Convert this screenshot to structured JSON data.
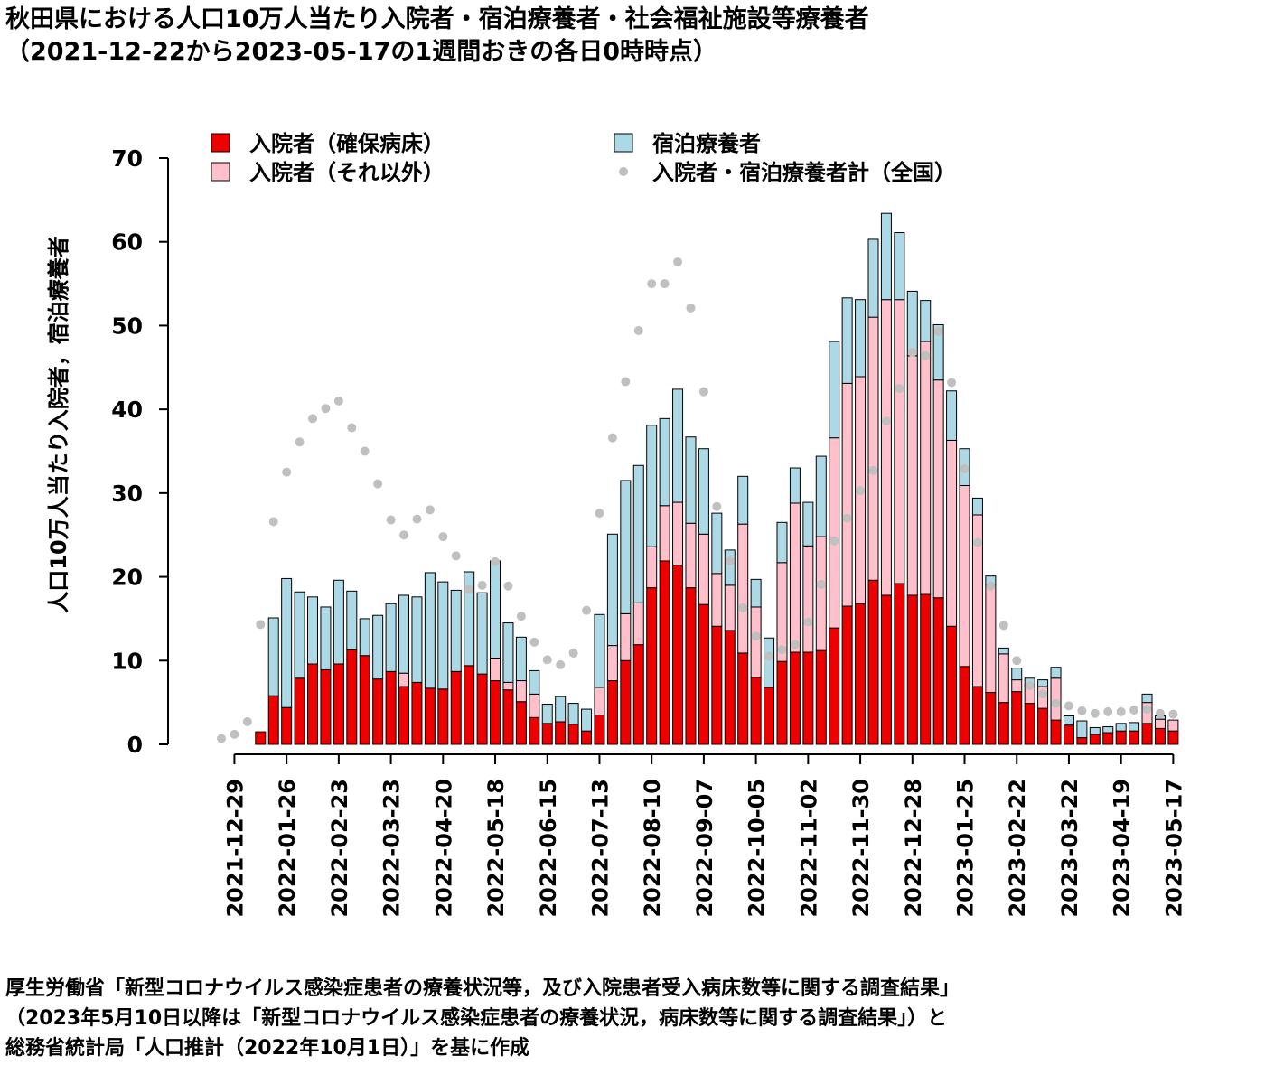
{
  "title": {
    "line1": "秋田県における人口10万人当たり入院者・宿泊療養者・社会福祉施設等療養者",
    "line2": "（2021-12-22から2023-05-17の1週間おきの各日0時時点）"
  },
  "source": {
    "line1": "厚生労働省「新型コロナウイルス感染症患者の療養状況等，及び入院患者受入病床数等に関する調査結果」",
    "line2": "（2023年5月10日以降は「新型コロナウイルス感染症患者の療養状況，病床数等に関する調査結果」）と",
    "line3": "総務省統計局「人口推計（2022年10月1日）」を基に作成"
  },
  "chart_data": {
    "type": "bar",
    "stacked": true,
    "ylabel": "人口10万人当たり入院者，宿泊療養者",
    "ylim": [
      0,
      70
    ],
    "yticks": [
      0,
      10,
      20,
      30,
      40,
      50,
      60,
      70
    ],
    "xtick_labels": [
      "2021-12-29",
      "2022-01-26",
      "2022-02-23",
      "2022-03-23",
      "2022-04-20",
      "2022-05-18",
      "2022-06-15",
      "2022-07-13",
      "2022-08-10",
      "2022-09-07",
      "2022-10-05",
      "2022-11-02",
      "2022-11-30",
      "2022-12-28",
      "2023-01-25",
      "2023-02-22",
      "2023-03-22",
      "2023-04-19",
      "2023-05-17"
    ],
    "xtick_every": 4,
    "xtick_offset": 1,
    "legend": {
      "position": "top",
      "items": [
        {
          "label": "入院者（確保病床）",
          "color": "#ee0000",
          "kind": "box"
        },
        {
          "label": "入院者（それ以外）",
          "color": "#ffc0cb",
          "kind": "box"
        },
        {
          "label": "宿泊療養者",
          "color": "#add8e6",
          "kind": "box"
        },
        {
          "label": "入院者・宿泊療養者計（全国）",
          "color": "#c0c0c0",
          "kind": "dot"
        }
      ]
    },
    "series": [
      {
        "key": "secured",
        "color": "#ee0000",
        "values": [
          0,
          0,
          0,
          1.5,
          5.8,
          4.4,
          7.9,
          9.6,
          8.9,
          9.6,
          11.3,
          10.6,
          7.8,
          8.7,
          6.9,
          7.4,
          6.7,
          6.6,
          8.7,
          9.4,
          8.4,
          7.6,
          6.5,
          5.1,
          3.2,
          2.5,
          2.7,
          2.4,
          1.6,
          3.5,
          7.6,
          10.0,
          11.9,
          18.7,
          21.9,
          21.4,
          18.7,
          16.7,
          14.1,
          13.6,
          10.9,
          8.0,
          6.8,
          9.9,
          11.0,
          11.0,
          11.2,
          13.9,
          16.5,
          16.8,
          19.6,
          17.8,
          19.2,
          17.8,
          17.9,
          17.5,
          14.1,
          9.3,
          6.9,
          6.2,
          5.0,
          6.3,
          4.9,
          4.3,
          2.9,
          2.3,
          0.8,
          1.2,
          1.4,
          1.6,
          1.6,
          2.5,
          1.9,
          1.6
        ]
      },
      {
        "key": "other",
        "color": "#ffc0cb",
        "values": [
          0,
          0,
          0,
          0,
          0,
          0,
          0,
          0,
          0,
          0,
          0,
          0,
          0,
          0,
          1.6,
          0,
          0,
          0,
          0,
          0,
          0,
          2.7,
          0.9,
          2.5,
          2.8,
          0,
          0,
          0,
          0,
          3.3,
          4.2,
          5.6,
          5.0,
          4.9,
          6.6,
          7.5,
          7.7,
          8.4,
          6.3,
          5.4,
          15.4,
          8.4,
          0,
          11.8,
          17.8,
          12.7,
          13.6,
          22.7,
          26.6,
          27.1,
          31.4,
          35.3,
          33.9,
          28.6,
          30.2,
          26.0,
          22.2,
          21.6,
          20.5,
          12.8,
          5.8,
          1.4,
          2.1,
          2.6,
          5.0,
          0,
          0,
          0,
          0,
          0,
          0,
          2.5,
          1.1,
          1.3
        ]
      },
      {
        "key": "hotel",
        "color": "#add8e6",
        "values": [
          0,
          0,
          0,
          0,
          9.3,
          15.4,
          10.3,
          8.0,
          7.5,
          10.0,
          7.0,
          4.4,
          7.6,
          8.1,
          9.3,
          10.2,
          13.8,
          12.8,
          9.7,
          11.2,
          9.7,
          11.6,
          7.1,
          5.2,
          2.8,
          2.3,
          3.0,
          2.5,
          2.6,
          8.7,
          13.3,
          15.9,
          16.4,
          14.5,
          10.4,
          13.5,
          10.3,
          10.2,
          7.2,
          4.2,
          5.7,
          3.3,
          5.9,
          4.8,
          4.2,
          5.2,
          9.6,
          11.5,
          10.2,
          9.2,
          9.3,
          10.3,
          8.0,
          7.7,
          4.9,
          6.6,
          5.9,
          4.4,
          2.0,
          1.1,
          0.7,
          1.4,
          0.9,
          0.8,
          1.3,
          1.1,
          2.0,
          0.8,
          0.7,
          0.9,
          1.0,
          1.0,
          0.4,
          0
        ]
      },
      {
        "key": "national",
        "color": "#c0c0c0",
        "kind": "points",
        "values": [
          0.7,
          1.2,
          2.7,
          14.3,
          26.6,
          32.5,
          36.1,
          38.9,
          40.1,
          41.0,
          37.8,
          35.0,
          31.1,
          26.8,
          25.0,
          26.9,
          28.0,
          24.8,
          22.5,
          18.5,
          19.0,
          21.8,
          18.9,
          15.3,
          12.2,
          10.1,
          9.5,
          10.9,
          16.0,
          27.6,
          36.6,
          43.3,
          49.4,
          55.0,
          55.0,
          57.6,
          52.1,
          42.1,
          28.4,
          21.9,
          16.3,
          12.9,
          10.5,
          11.3,
          11.9,
          14.6,
          19.1,
          24.3,
          27.0,
          30.3,
          32.7,
          38.6,
          42.5,
          46.8,
          46.4,
          49.3,
          43.2,
          32.9,
          24.1,
          18.9,
          14.2,
          10.0,
          7.0,
          6.0,
          4.9,
          4.6,
          4.0,
          3.7,
          3.9,
          3.9,
          4.1,
          4.2,
          3.7,
          3.6
        ]
      }
    ]
  }
}
